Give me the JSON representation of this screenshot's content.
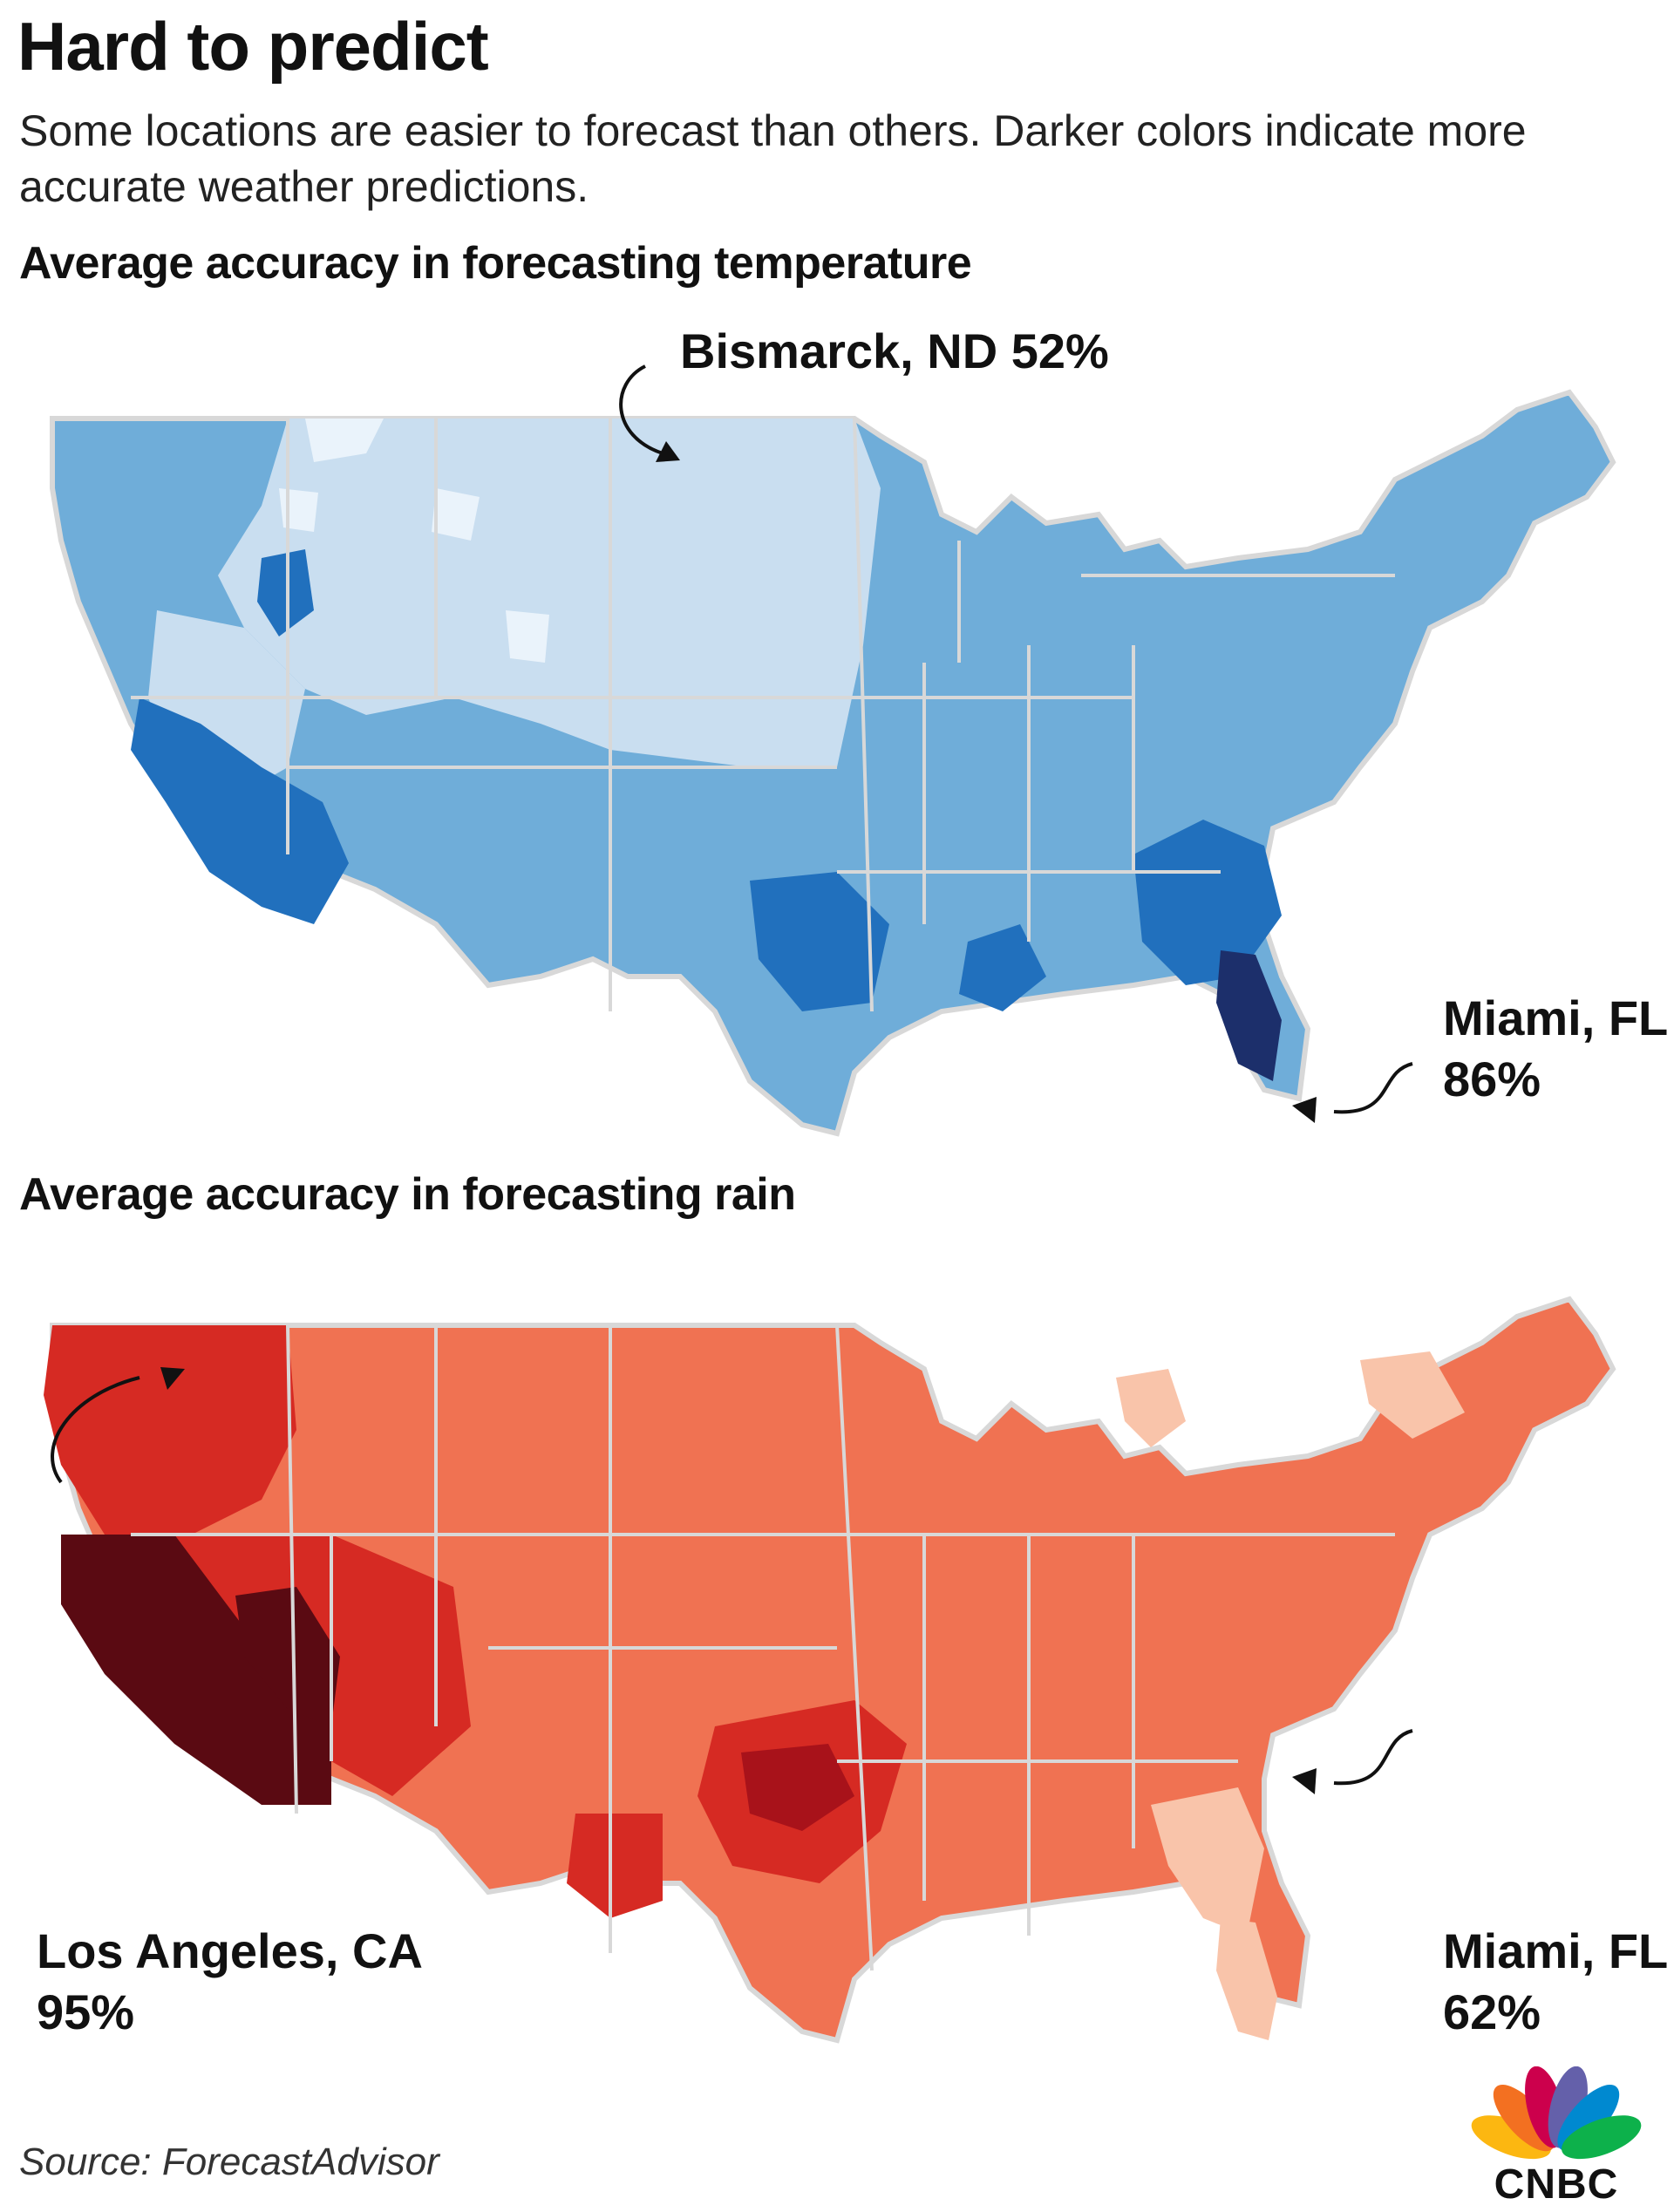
{
  "title": "Hard to predict",
  "subtitle": "Some locations are easier to forecast than others. Darker colors indicate more accurate weather predictions.",
  "maps": {
    "temperature": {
      "heading": "Average accuracy in forecasting temperature",
      "callouts": {
        "bismarck": "Bismarck, ND 52%",
        "miami_city": "Miami, FL",
        "miami_value": "86%"
      },
      "palette": [
        "#eaf3fb",
        "#c9def0",
        "#6fadd9",
        "#2170bd",
        "#1c2f6b"
      ]
    },
    "rain": {
      "heading": "Average accuracy in forecasting rain",
      "callouts": {
        "la_city": "Los Angeles, CA",
        "la_value": "95%",
        "miami_city": "Miami, FL",
        "miami_value": "62%"
      },
      "palette": [
        "#f9c4aa",
        "#f07252",
        "#d62a23",
        "#a8121a",
        "#5a0a12"
      ]
    }
  },
  "source": "Source: ForecastAdvisor",
  "logo": {
    "text": "CNBC",
    "icon": "peacock-logo",
    "colors": [
      "#fcb711",
      "#f37021",
      "#cc004c",
      "#6460aa",
      "#0089d0",
      "#0db14b"
    ]
  }
}
